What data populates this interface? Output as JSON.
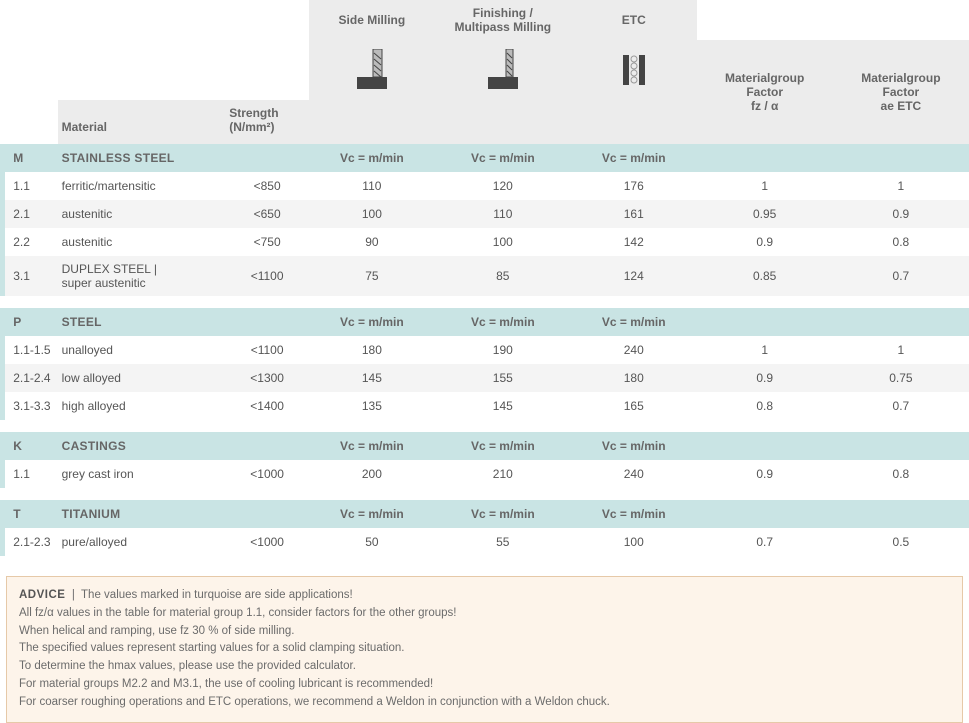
{
  "header": {
    "top": {
      "side": "Side Milling",
      "finish": "Finishing /\nMultipass Milling",
      "etc": "ETC"
    },
    "factors": {
      "f1": "Materialgroup\nFactor\nfz / α",
      "f2": "Materialgroup\nFactor\nae ETC"
    },
    "low": {
      "material": "Material",
      "strength": "Strength\n(N/mm²)"
    }
  },
  "vc_label": "Vc = m/min",
  "groups": [
    {
      "code": "M",
      "name": "STAINLESS STEEL",
      "bar": "bar-yellow",
      "rows": [
        {
          "code": "1.1",
          "mat": "ferritic/martensitic",
          "str": "<850",
          "sm": "110",
          "fm": "120",
          "etc": "176",
          "f1": "1",
          "f2": "1"
        },
        {
          "code": "2.1",
          "mat": "austenitic",
          "str": "<650",
          "sm": "100",
          "fm": "110",
          "etc": "161",
          "f1": "0.95",
          "f2": "0.9"
        },
        {
          "code": "2.2",
          "mat": "austenitic",
          "str": "<750",
          "sm": "90",
          "fm": "100",
          "etc": "142",
          "f1": "0.9",
          "f2": "0.8"
        },
        {
          "code": "3.1",
          "mat": "DUPLEX STEEL |\nsuper austenitic",
          "str": "<1100",
          "sm": "75",
          "fm": "85",
          "etc": "124",
          "f1": "0.85",
          "f2": "0.7"
        }
      ]
    },
    {
      "code": "P",
      "name": "STEEL",
      "bar": "bar-blue",
      "rows": [
        {
          "code": "1.1-1.5",
          "mat": "unalloyed",
          "str": "<1100",
          "sm": "180",
          "fm": "190",
          "etc": "240",
          "f1": "1",
          "f2": "1"
        },
        {
          "code": "2.1-2.4",
          "mat": "low alloyed",
          "str": "<1300",
          "sm": "145",
          "fm": "155",
          "etc": "180",
          "f1": "0.9",
          "f2": "0.75"
        },
        {
          "code": "3.1-3.3",
          "mat": "high alloyed",
          "str": "<1400",
          "sm": "135",
          "fm": "145",
          "etc": "165",
          "f1": "0.8",
          "f2": "0.7"
        }
      ]
    },
    {
      "code": "K",
      "name": "CASTINGS",
      "bar": "bar-red",
      "rows": [
        {
          "code": "1.1",
          "mat": "grey cast iron",
          "str": "<1000",
          "sm": "200",
          "fm": "210",
          "etc": "240",
          "f1": "0.9",
          "f2": "0.8"
        }
      ]
    },
    {
      "code": "T",
      "name": "TITANIUM",
      "bar": "bar-orange",
      "rows": [
        {
          "code": "2.1-2.3",
          "mat": "pure/alloyed",
          "str": "<1000",
          "sm": "50",
          "fm": "55",
          "etc": "100",
          "f1": "0.7",
          "f2": "0.5"
        }
      ]
    }
  ],
  "advice": {
    "label": "ADVICE",
    "lines": [
      "The values marked in turquoise are side applications!",
      "All fz/α values in the table for material group 1.1, consider factors for the other groups!",
      "When helical and ramping, use fz 30 % of side milling.",
      "The specified values represent starting values for a solid clamping situation.",
      "To determine the hmax values, please use the provided calculator.",
      "For material groups M2.2 and M3.1, the use of cooling lubricant is recommended!",
      "For coarser roughing operations and ETC operations, we recommend a Weldon in conjunction with a Weldon chuck."
    ]
  }
}
